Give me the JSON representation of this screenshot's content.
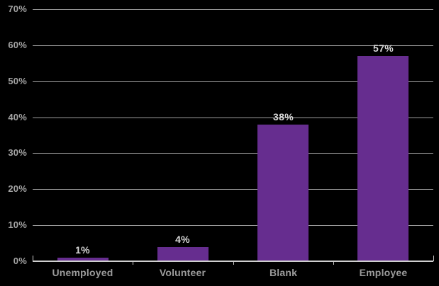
{
  "chart_data": {
    "type": "bar",
    "title": "",
    "xlabel": "",
    "ylabel": "",
    "categories": [
      "Unemployed",
      "Volunteer",
      "Blank",
      "Employee"
    ],
    "values": [
      1,
      4,
      38,
      57
    ],
    "data_labels": [
      "1%",
      "4%",
      "38%",
      "57%"
    ],
    "ylim": [
      0,
      70
    ],
    "ytick_step": 10,
    "ytick_labels": [
      "0%",
      "10%",
      "20%",
      "30%",
      "40%",
      "50%",
      "60%",
      "70%"
    ],
    "grid": true,
    "legend": false,
    "colors": {
      "background": "#000000",
      "bar": "#662d8f",
      "gridline": "#9e9e9e",
      "axis_line": "#cfcfcf",
      "axis_label": "#a3a3a3",
      "category_label": "#9b9b9b",
      "data_label": "#d9d9d9"
    }
  }
}
